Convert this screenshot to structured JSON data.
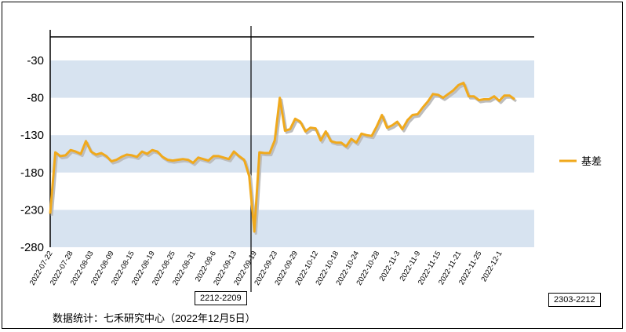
{
  "chart_data": {
    "type": "line",
    "title": "",
    "xlabel": "",
    "ylabel": "",
    "ylim": [
      -280,
      0
    ],
    "yticks": [
      -30,
      -80,
      -130,
      -180,
      -230,
      -280
    ],
    "grid": "alternating horizontal bands",
    "legend_position": "right",
    "x_tick_labels": [
      "2022-07-22",
      "2022-07-28",
      "2022-08-03",
      "2022-08-09",
      "2022-08-15",
      "2022-08-19",
      "2022-08-25",
      "2022-08-31",
      "2022-09-6",
      "2022-09-13",
      "2022-09-19",
      "2022-09-23",
      "2022-09-29",
      "2022-10-12",
      "2022-10-18",
      "2022-10-24",
      "2022-10-28",
      "2022-11-3",
      "2022-11-9",
      "2022-11-15",
      "2022-11-21",
      "2022-11-25",
      "2022-12-1"
    ],
    "series": [
      {
        "name": "基差",
        "color": "#f0a91c",
        "values": [
          -235,
          -153,
          -158,
          -157,
          -150,
          -152,
          -155,
          -138,
          -152,
          -156,
          -154,
          -158,
          -165,
          -163,
          -159,
          -156,
          -157,
          -159,
          -152,
          -155,
          -150,
          -152,
          -159,
          -163,
          -164,
          -163,
          -162,
          -163,
          -167,
          -160,
          -162,
          -164,
          -158,
          -158,
          -160,
          -162,
          -152,
          -158,
          -163,
          -185,
          -259,
          -153,
          -154,
          -154,
          -137,
          -80,
          -124,
          -122,
          -108,
          -112,
          -125,
          -120,
          -121,
          -137,
          -125,
          -138,
          -140,
          -140,
          -145,
          -135,
          -140,
          -128,
          -130,
          -131,
          -118,
          -103,
          -120,
          -117,
          -112,
          -122,
          -110,
          -103,
          -102,
          -93,
          -85,
          -75,
          -76,
          -80,
          -75,
          -70,
          -63,
          -60,
          -78,
          -78,
          -83,
          -82,
          -82,
          -78,
          -84,
          -77,
          -77,
          -82
        ]
      }
    ],
    "annotations": {
      "roll_marker_label": "2212-2209",
      "contract_label": "2303-2212"
    }
  },
  "legend": {
    "label": "基差"
  },
  "source": "数据统计：七禾研究中心（2022年12月5日）"
}
